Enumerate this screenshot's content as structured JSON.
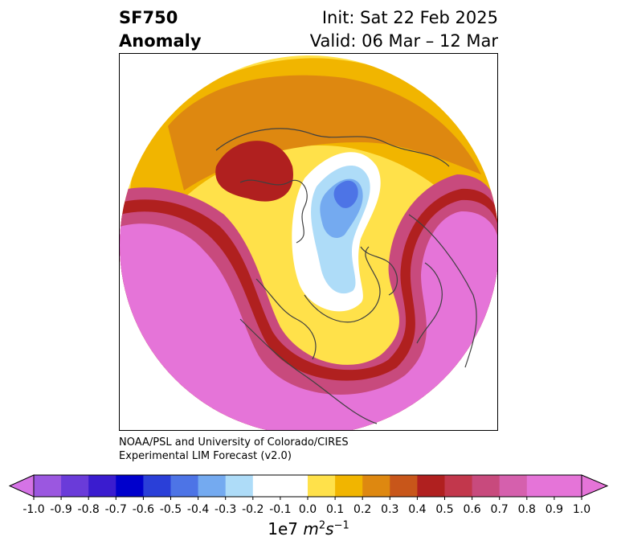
{
  "header": {
    "title_line1": "SF750",
    "title_line2": "Anomaly",
    "init": "Init: Sat 22 Feb 2025",
    "valid": "Valid: 06 Mar – 12 Mar"
  },
  "credit": {
    "line1": "NOAA/PSL and University of Colorado/CIRES",
    "line2": "Experimental LIM Forecast (v2.0)"
  },
  "colorbar": {
    "ticks": [
      "-1.0",
      "-0.9",
      "-0.8",
      "-0.7",
      "-0.6",
      "-0.5",
      "-0.4",
      "-0.3",
      "-0.2",
      "-0.1",
      "0.0",
      "0.1",
      "0.2",
      "0.3",
      "0.4",
      "0.5",
      "0.6",
      "0.7",
      "0.8",
      "0.9",
      "1.0"
    ],
    "colors": [
      "#9b57e0",
      "#6a3bd9",
      "#3a1ccf",
      "#0000cc",
      "#2a3fd8",
      "#4d74e6",
      "#74aaf0",
      "#aedcf8",
      "#ffffff",
      "#ffffff",
      "#ffe14a",
      "#f1b500",
      "#de8810",
      "#c8561a",
      "#b0201f",
      "#c2374c",
      "#c84a7d",
      "#d560ad",
      "#e574d8",
      "#e574d8"
    ],
    "extend_low_color": "#d573e6",
    "extend_high_color": "#e574d8",
    "units_prefix": "1e7 ",
    "units_m": "m",
    "units_m_exp": "2",
    "units_s": "s",
    "units_s_exp": "−1"
  },
  "map": {
    "projection": "north-polar-stereographic",
    "field_colors": {
      "strong_positive": "#e574d8",
      "positive_ring_outer": "#c84a7d",
      "positive_ring_mid": "#b0201f",
      "orange": "#de8810",
      "gold": "#f1b500",
      "yellow": "#ffe14a",
      "light_blue": "#aedcf8",
      "mid_blue": "#74aaf0",
      "blue": "#4d74e6"
    }
  }
}
